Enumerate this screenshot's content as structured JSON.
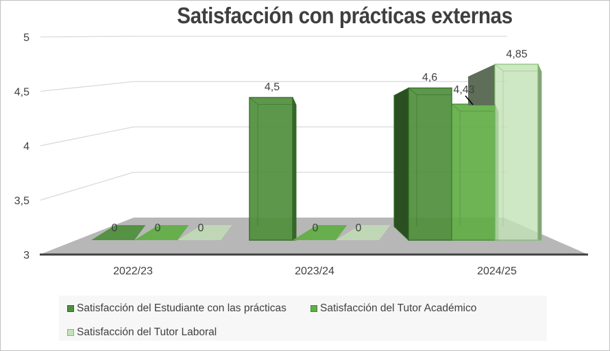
{
  "chart_data": {
    "type": "bar",
    "title": "Satisfacción con prácticas externas",
    "xlabel": "",
    "ylabel": "",
    "categories": [
      "2022/23",
      "2023/24",
      "2024/25"
    ],
    "series": [
      {
        "name": "Satisfacción del Estudiante con las prácticas",
        "values": [
          0,
          4.5,
          4.6
        ],
        "labels": [
          "0",
          "4,5",
          "4,6"
        ],
        "color": "#4f8f3c",
        "border": "#2f6a22"
      },
      {
        "name": "Satisfacción del Tutor Académico",
        "values": [
          0,
          0,
          4.43
        ],
        "labels": [
          "0",
          "0",
          "4,43"
        ],
        "color": "#62ad46",
        "border": "#3f8a2c"
      },
      {
        "name": "Satisfacción del Tutor Laboral",
        "values": [
          0,
          0,
          4.85
        ],
        "labels": [
          "0",
          "0",
          "4,85"
        ],
        "color": "#c3e2b6",
        "border": "#7fbd6c"
      }
    ],
    "ylim": [
      3,
      5
    ],
    "yticks": [
      "3",
      "3,5",
      "4",
      "4,5",
      "5"
    ],
    "grid": true,
    "legend_position": "bottom",
    "style": "3d-column"
  }
}
